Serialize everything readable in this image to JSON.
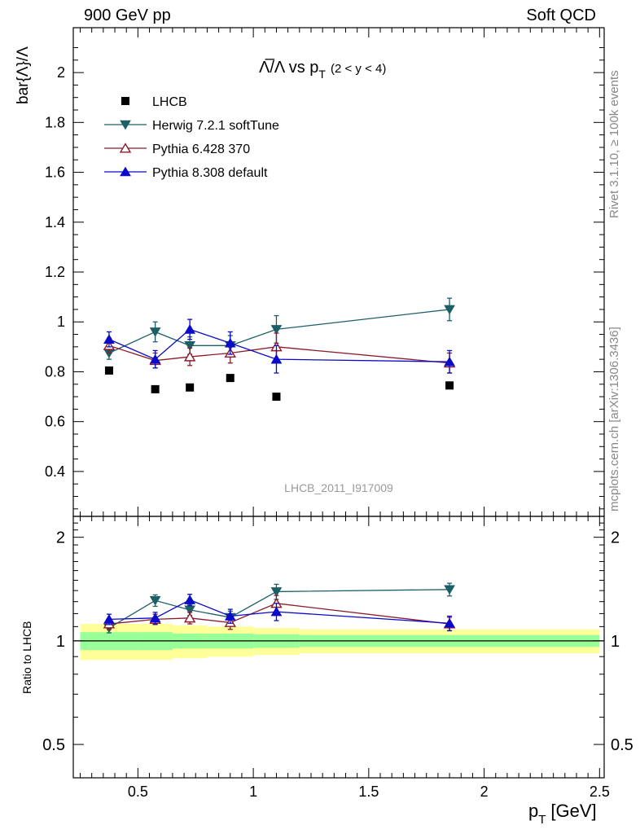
{
  "header": {
    "left": "900 GeV pp",
    "right": "Soft QCD"
  },
  "side_labels": {
    "rivet": "Rivet 3.1.10, ≥ 100k events",
    "mcplots": "mcplots.cern.ch [arXiv:1306.3436]"
  },
  "chart_data": {
    "type": "scatter",
    "title_main": "Λ̅/Λ vs p",
    "title_sub": "T",
    "title_range": "(2 < y < 4)",
    "watermark": "LHCB_2011_I917009",
    "xlabel_main": "p",
    "xlabel_sub": "T",
    "xlabel_unit": "[GeV]",
    "ylabel": "bar{Λ}/Λ",
    "ratio_ylabel": "Ratio to LHCB",
    "xlim": [
      0.22,
      2.52
    ],
    "ylim": [
      0.22,
      2.18
    ],
    "ratio_ylim": [
      0.4,
      2.3
    ],
    "x_ticks": [
      0.5,
      1,
      1.5,
      2,
      2.5
    ],
    "x_tick_labels": [
      "0.5",
      "1",
      "1.5",
      "2",
      "2.5"
    ],
    "y_ticks": [
      0.4,
      0.6,
      0.8,
      1,
      1.2,
      1.4,
      1.6,
      1.8,
      2
    ],
    "y_tick_labels": [
      "0.4",
      "0.6",
      "0.8",
      "1",
      "1.2",
      "1.4",
      "1.6",
      "1.8",
      "2"
    ],
    "ratio_ticks": [
      0.5,
      1,
      2
    ],
    "ratio_tick_labels": [
      "0.5",
      "1",
      "2"
    ],
    "bins": [
      [
        0.25,
        0.5
      ],
      [
        0.5,
        0.65
      ],
      [
        0.65,
        0.8
      ],
      [
        0.8,
        1.0
      ],
      [
        1.0,
        1.2
      ],
      [
        1.2,
        2.5
      ]
    ],
    "band_yellow_rel": [
      0.12,
      0.12,
      0.11,
      0.1,
      0.09,
      0.08
    ],
    "band_green_rel": [
      0.06,
      0.06,
      0.05,
      0.05,
      0.045,
      0.04
    ],
    "x": [
      0.375,
      0.575,
      0.725,
      0.9,
      1.1,
      1.85
    ],
    "legend_position": "top-left",
    "series": [
      {
        "name": "LHCB",
        "marker": "square",
        "color": "#000000",
        "values": [
          0.805,
          0.73,
          0.737,
          0.775,
          0.7,
          0.745
        ],
        "errors": [
          0,
          0,
          0,
          0,
          0,
          0
        ],
        "ratio": [
          1,
          1,
          1,
          1,
          1,
          1
        ],
        "ratio_errors": [
          0,
          0,
          0,
          0,
          0,
          0
        ]
      },
      {
        "name": "Herwig 7.2.1 softTune",
        "marker": "triangle-down",
        "color": "#1d5f66",
        "values": [
          0.875,
          0.96,
          0.905,
          0.905,
          0.97,
          1.05
        ],
        "errors": [
          0.025,
          0.04,
          0.035,
          0.04,
          0.055,
          0.045
        ],
        "ratio": [
          1.09,
          1.31,
          1.23,
          1.17,
          1.39,
          1.41
        ],
        "ratio_errors": [
          0.035,
          0.05,
          0.045,
          0.05,
          0.07,
          0.06
        ]
      },
      {
        "name": "Pythia 6.428 370",
        "marker": "triangle-open",
        "color": "#8b1a2a",
        "values": [
          0.905,
          0.845,
          0.86,
          0.875,
          0.9,
          0.835
        ],
        "errors": [
          0.03,
          0.03,
          0.035,
          0.04,
          0.055,
          0.04
        ],
        "ratio": [
          1.12,
          1.155,
          1.165,
          1.13,
          1.285,
          1.12
        ],
        "ratio_errors": [
          0.04,
          0.04,
          0.045,
          0.05,
          0.07,
          0.05
        ]
      },
      {
        "name": "Pythia 8.308 default",
        "marker": "triangle-up",
        "color": "#0a0ac8",
        "values": [
          0.93,
          0.85,
          0.97,
          0.915,
          0.85,
          0.84
        ],
        "errors": [
          0.03,
          0.035,
          0.04,
          0.045,
          0.055,
          0.045
        ],
        "ratio": [
          1.155,
          1.165,
          1.315,
          1.18,
          1.215,
          1.125
        ],
        "ratio_errors": [
          0.04,
          0.045,
          0.05,
          0.055,
          0.07,
          0.055
        ]
      }
    ]
  }
}
